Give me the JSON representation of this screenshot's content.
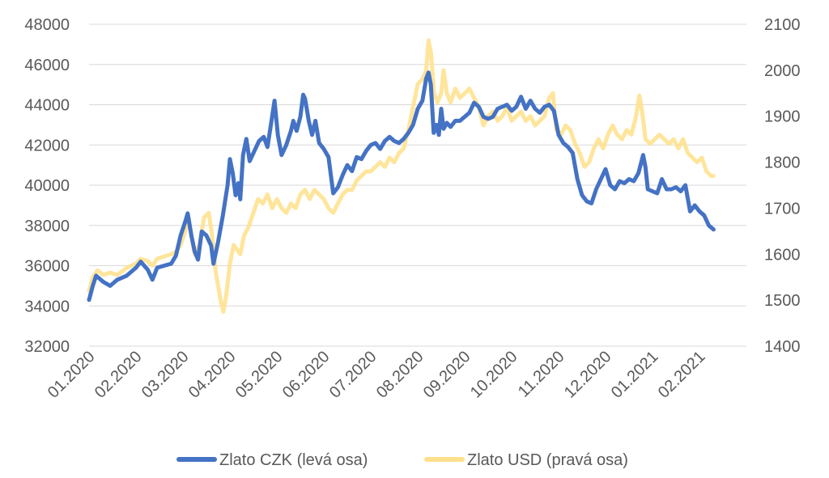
{
  "chart_data": {
    "type": "line",
    "grid": true,
    "legend_position": "bottom",
    "x_tick_labels": [
      "01.2020",
      "02.2020",
      "03.2020",
      "04.2020",
      "05.2020",
      "06.2020",
      "07.2020",
      "08.2020",
      "09.2020",
      "10.2020",
      "11.2020",
      "12.2020",
      "01.2021",
      "02.2021"
    ],
    "y_left": {
      "min": 32000,
      "max": 48000,
      "ticks": [
        32000,
        34000,
        36000,
        38000,
        40000,
        42000,
        44000,
        46000,
        48000
      ]
    },
    "y_right": {
      "min": 1400,
      "max": 2100,
      "ticks": [
        1400,
        1500,
        1600,
        1700,
        1800,
        1900,
        2000,
        2100
      ]
    },
    "series": [
      {
        "name": "Zlato CZK (levá osa)",
        "axis": "left",
        "color": "#4472C4",
        "points": [
          [
            0.0,
            34300
          ],
          [
            0.08,
            35000
          ],
          [
            0.15,
            35500
          ],
          [
            0.3,
            35200
          ],
          [
            0.45,
            35000
          ],
          [
            0.6,
            35300
          ],
          [
            0.8,
            35500
          ],
          [
            1.0,
            35900
          ],
          [
            1.1,
            36200
          ],
          [
            1.25,
            35800
          ],
          [
            1.35,
            35300
          ],
          [
            1.45,
            35900
          ],
          [
            1.6,
            36000
          ],
          [
            1.75,
            36100
          ],
          [
            1.85,
            36500
          ],
          [
            1.95,
            37500
          ],
          [
            2.05,
            38200
          ],
          [
            2.1,
            38600
          ],
          [
            2.18,
            37500
          ],
          [
            2.25,
            36700
          ],
          [
            2.32,
            36300
          ],
          [
            2.4,
            37700
          ],
          [
            2.5,
            37500
          ],
          [
            2.6,
            37000
          ],
          [
            2.65,
            36100
          ],
          [
            2.75,
            37200
          ],
          [
            2.85,
            38500
          ],
          [
            2.95,
            40000
          ],
          [
            3.0,
            41300
          ],
          [
            3.06,
            40600
          ],
          [
            3.12,
            39500
          ],
          [
            3.18,
            40100
          ],
          [
            3.22,
            39300
          ],
          [
            3.28,
            41500
          ],
          [
            3.35,
            42300
          ],
          [
            3.42,
            41200
          ],
          [
            3.52,
            41700
          ],
          [
            3.62,
            42200
          ],
          [
            3.72,
            42400
          ],
          [
            3.8,
            41900
          ],
          [
            3.88,
            43100
          ],
          [
            3.95,
            44200
          ],
          [
            4.02,
            42500
          ],
          [
            4.1,
            41500
          ],
          [
            4.2,
            42000
          ],
          [
            4.3,
            42700
          ],
          [
            4.35,
            43200
          ],
          [
            4.42,
            42700
          ],
          [
            4.5,
            43400
          ],
          [
            4.56,
            44500
          ],
          [
            4.6,
            44300
          ],
          [
            4.68,
            43200
          ],
          [
            4.75,
            42500
          ],
          [
            4.82,
            43200
          ],
          [
            4.9,
            42100
          ],
          [
            5.0,
            41800
          ],
          [
            5.1,
            41400
          ],
          [
            5.2,
            39600
          ],
          [
            5.3,
            39900
          ],
          [
            5.4,
            40500
          ],
          [
            5.5,
            41000
          ],
          [
            5.6,
            40700
          ],
          [
            5.7,
            41400
          ],
          [
            5.8,
            41300
          ],
          [
            5.9,
            41700
          ],
          [
            6.0,
            42000
          ],
          [
            6.1,
            42100
          ],
          [
            6.2,
            41800
          ],
          [
            6.3,
            42200
          ],
          [
            6.4,
            42400
          ],
          [
            6.5,
            42200
          ],
          [
            6.6,
            42100
          ],
          [
            6.7,
            42300
          ],
          [
            6.8,
            42600
          ],
          [
            6.9,
            43000
          ],
          [
            7.0,
            43800
          ],
          [
            7.1,
            44200
          ],
          [
            7.18,
            45300
          ],
          [
            7.23,
            45600
          ],
          [
            7.28,
            45000
          ],
          [
            7.34,
            42600
          ],
          [
            7.4,
            43000
          ],
          [
            7.45,
            42500
          ],
          [
            7.5,
            43800
          ],
          [
            7.55,
            42800
          ],
          [
            7.62,
            43100
          ],
          [
            7.7,
            42900
          ],
          [
            7.8,
            43200
          ],
          [
            7.9,
            43200
          ],
          [
            8.0,
            43400
          ],
          [
            8.1,
            43600
          ],
          [
            8.2,
            44100
          ],
          [
            8.3,
            43900
          ],
          [
            8.4,
            43400
          ],
          [
            8.5,
            43300
          ],
          [
            8.6,
            43400
          ],
          [
            8.7,
            43800
          ],
          [
            8.8,
            43900
          ],
          [
            8.9,
            44000
          ],
          [
            9.0,
            43700
          ],
          [
            9.1,
            43900
          ],
          [
            9.2,
            44400
          ],
          [
            9.3,
            43800
          ],
          [
            9.4,
            44200
          ],
          [
            9.5,
            43800
          ],
          [
            9.6,
            43600
          ],
          [
            9.7,
            43900
          ],
          [
            9.8,
            44000
          ],
          [
            9.9,
            43700
          ],
          [
            10.0,
            42500
          ],
          [
            10.1,
            42100
          ],
          [
            10.2,
            41900
          ],
          [
            10.3,
            41600
          ],
          [
            10.4,
            40300
          ],
          [
            10.5,
            39500
          ],
          [
            10.6,
            39200
          ],
          [
            10.7,
            39100
          ],
          [
            10.8,
            39800
          ],
          [
            10.9,
            40300
          ],
          [
            11.0,
            40800
          ],
          [
            11.1,
            40000
          ],
          [
            11.2,
            39800
          ],
          [
            11.3,
            40200
          ],
          [
            11.4,
            40100
          ],
          [
            11.5,
            40300
          ],
          [
            11.6,
            40200
          ],
          [
            11.7,
            40600
          ],
          [
            11.8,
            41500
          ],
          [
            11.85,
            40900
          ],
          [
            11.9,
            39800
          ],
          [
            12.0,
            39700
          ],
          [
            12.1,
            39600
          ],
          [
            12.2,
            40300
          ],
          [
            12.3,
            39800
          ],
          [
            12.4,
            39800
          ],
          [
            12.5,
            39900
          ],
          [
            12.6,
            39700
          ],
          [
            12.7,
            40000
          ],
          [
            12.8,
            38700
          ],
          [
            12.9,
            39000
          ],
          [
            13.0,
            38700
          ],
          [
            13.1,
            38500
          ],
          [
            13.2,
            38000
          ],
          [
            13.3,
            37800
          ]
        ]
      },
      {
        "name": "Zlato USD (pravá osa)",
        "axis": "right",
        "color": "#FFE08A",
        "points": [
          [
            0.0,
            1520
          ],
          [
            0.08,
            1550
          ],
          [
            0.18,
            1565
          ],
          [
            0.3,
            1555
          ],
          [
            0.45,
            1560
          ],
          [
            0.6,
            1555
          ],
          [
            0.8,
            1570
          ],
          [
            1.0,
            1580
          ],
          [
            1.1,
            1590
          ],
          [
            1.25,
            1585
          ],
          [
            1.35,
            1575
          ],
          [
            1.45,
            1590
          ],
          [
            1.6,
            1595
          ],
          [
            1.75,
            1600
          ],
          [
            1.85,
            1605
          ],
          [
            1.95,
            1620
          ],
          [
            2.05,
            1650
          ],
          [
            2.12,
            1680
          ],
          [
            2.18,
            1640
          ],
          [
            2.25,
            1600
          ],
          [
            2.35,
            1620
          ],
          [
            2.45,
            1680
          ],
          [
            2.55,
            1690
          ],
          [
            2.62,
            1640
          ],
          [
            2.7,
            1560
          ],
          [
            2.8,
            1500
          ],
          [
            2.86,
            1475
          ],
          [
            2.92,
            1510
          ],
          [
            3.0,
            1580
          ],
          [
            3.08,
            1620
          ],
          [
            3.15,
            1610
          ],
          [
            3.22,
            1600
          ],
          [
            3.3,
            1640
          ],
          [
            3.4,
            1660
          ],
          [
            3.5,
            1690
          ],
          [
            3.6,
            1720
          ],
          [
            3.7,
            1710
          ],
          [
            3.8,
            1730
          ],
          [
            3.9,
            1700
          ],
          [
            4.0,
            1720
          ],
          [
            4.1,
            1700
          ],
          [
            4.2,
            1690
          ],
          [
            4.3,
            1710
          ],
          [
            4.4,
            1700
          ],
          [
            4.5,
            1730
          ],
          [
            4.6,
            1740
          ],
          [
            4.7,
            1720
          ],
          [
            4.8,
            1740
          ],
          [
            4.9,
            1730
          ],
          [
            5.0,
            1720
          ],
          [
            5.1,
            1700
          ],
          [
            5.2,
            1690
          ],
          [
            5.3,
            1710
          ],
          [
            5.4,
            1730
          ],
          [
            5.5,
            1740
          ],
          [
            5.6,
            1740
          ],
          [
            5.7,
            1760
          ],
          [
            5.8,
            1770
          ],
          [
            5.9,
            1780
          ],
          [
            6.0,
            1780
          ],
          [
            6.1,
            1790
          ],
          [
            6.2,
            1800
          ],
          [
            6.3,
            1790
          ],
          [
            6.4,
            1810
          ],
          [
            6.5,
            1800
          ],
          [
            6.6,
            1820
          ],
          [
            6.7,
            1830
          ],
          [
            6.8,
            1870
          ],
          [
            6.9,
            1920
          ],
          [
            7.0,
            1970
          ],
          [
            7.1,
            1980
          ],
          [
            7.18,
            2000
          ],
          [
            7.23,
            2065
          ],
          [
            7.28,
            2040
          ],
          [
            7.35,
            1950
          ],
          [
            7.42,
            1930
          ],
          [
            7.5,
            1950
          ],
          [
            7.55,
            2000
          ],
          [
            7.62,
            1950
          ],
          [
            7.7,
            1930
          ],
          [
            7.8,
            1960
          ],
          [
            7.9,
            1940
          ],
          [
            8.0,
            1950
          ],
          [
            8.1,
            1960
          ],
          [
            8.2,
            1940
          ],
          [
            8.3,
            1920
          ],
          [
            8.4,
            1880
          ],
          [
            8.5,
            1900
          ],
          [
            8.6,
            1910
          ],
          [
            8.7,
            1890
          ],
          [
            8.8,
            1900
          ],
          [
            8.9,
            1920
          ],
          [
            9.0,
            1890
          ],
          [
            9.1,
            1900
          ],
          [
            9.2,
            1910
          ],
          [
            9.3,
            1890
          ],
          [
            9.4,
            1900
          ],
          [
            9.5,
            1880
          ],
          [
            9.6,
            1890
          ],
          [
            9.7,
            1900
          ],
          [
            9.8,
            1940
          ],
          [
            9.88,
            1950
          ],
          [
            9.95,
            1870
          ],
          [
            10.05,
            1860
          ],
          [
            10.15,
            1880
          ],
          [
            10.25,
            1870
          ],
          [
            10.35,
            1840
          ],
          [
            10.45,
            1820
          ],
          [
            10.55,
            1790
          ],
          [
            10.65,
            1800
          ],
          [
            10.75,
            1830
          ],
          [
            10.85,
            1850
          ],
          [
            10.95,
            1830
          ],
          [
            11.05,
            1860
          ],
          [
            11.15,
            1880
          ],
          [
            11.25,
            1860
          ],
          [
            11.35,
            1850
          ],
          [
            11.45,
            1870
          ],
          [
            11.55,
            1860
          ],
          [
            11.65,
            1900
          ],
          [
            11.72,
            1945
          ],
          [
            11.78,
            1910
          ],
          [
            11.85,
            1850
          ],
          [
            11.95,
            1840
          ],
          [
            12.05,
            1850
          ],
          [
            12.15,
            1860
          ],
          [
            12.25,
            1850
          ],
          [
            12.35,
            1840
          ],
          [
            12.45,
            1850
          ],
          [
            12.55,
            1830
          ],
          [
            12.65,
            1850
          ],
          [
            12.75,
            1820
          ],
          [
            12.85,
            1810
          ],
          [
            12.95,
            1800
          ],
          [
            13.05,
            1810
          ],
          [
            13.15,
            1780
          ],
          [
            13.25,
            1770
          ],
          [
            13.3,
            1770
          ]
        ]
      }
    ]
  }
}
